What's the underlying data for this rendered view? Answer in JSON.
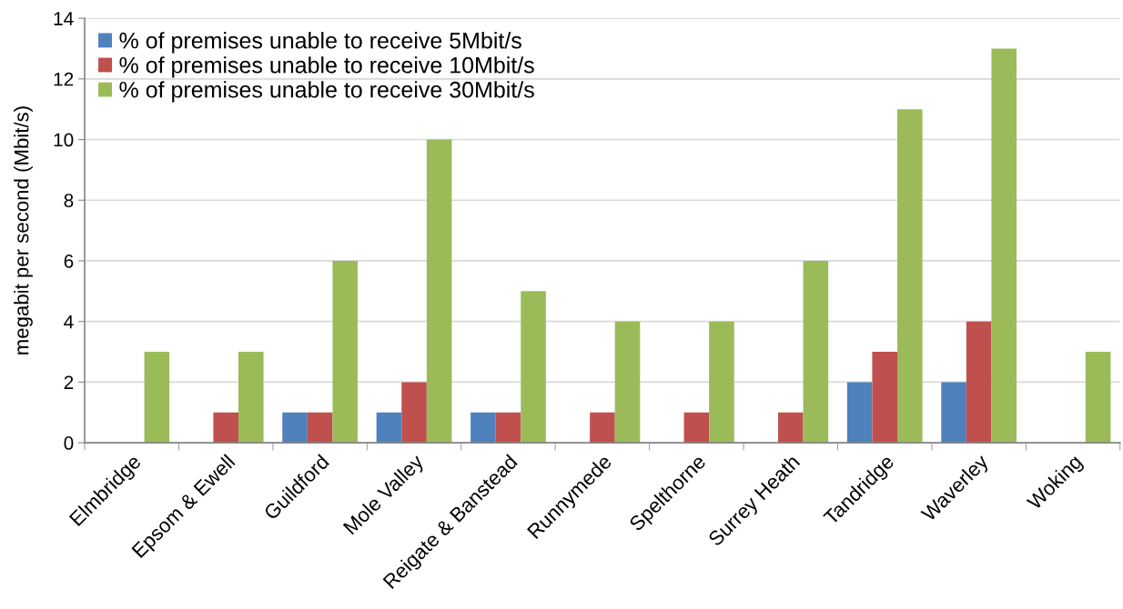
{
  "chart_data": {
    "type": "bar",
    "ylabel": "megabit per second (Mbit/s)",
    "categories": [
      "Elmbridge",
      "Epsom & Ewell",
      "Guildford",
      "Mole Valley",
      "Reigate & Banstead",
      "Runnymede",
      "Spelthorne",
      "Surrey Heath",
      "Tandridge",
      "Waverley",
      "Woking"
    ],
    "series": [
      {
        "name": "% of premises unable to receive 5Mbit/s",
        "color": "#4f81bd",
        "values": [
          0,
          0,
          1,
          1,
          1,
          0,
          0,
          0,
          2,
          2,
          0
        ]
      },
      {
        "name": "% of premises unable to receive 10Mbit/s",
        "color": "#c0504d",
        "values": [
          0,
          1,
          1,
          2,
          1,
          1,
          1,
          1,
          3,
          4,
          0
        ]
      },
      {
        "name": "% of premises unable to receive 30Mbit/s",
        "color": "#9bbb59",
        "values": [
          3,
          3,
          6,
          10,
          5,
          4,
          4,
          6,
          11,
          13,
          3
        ]
      }
    ],
    "ylim": [
      0,
      14
    ],
    "yticks": [
      0,
      2,
      4,
      6,
      8,
      10,
      12,
      14
    ],
    "grid": "y",
    "legend": "top left"
  }
}
